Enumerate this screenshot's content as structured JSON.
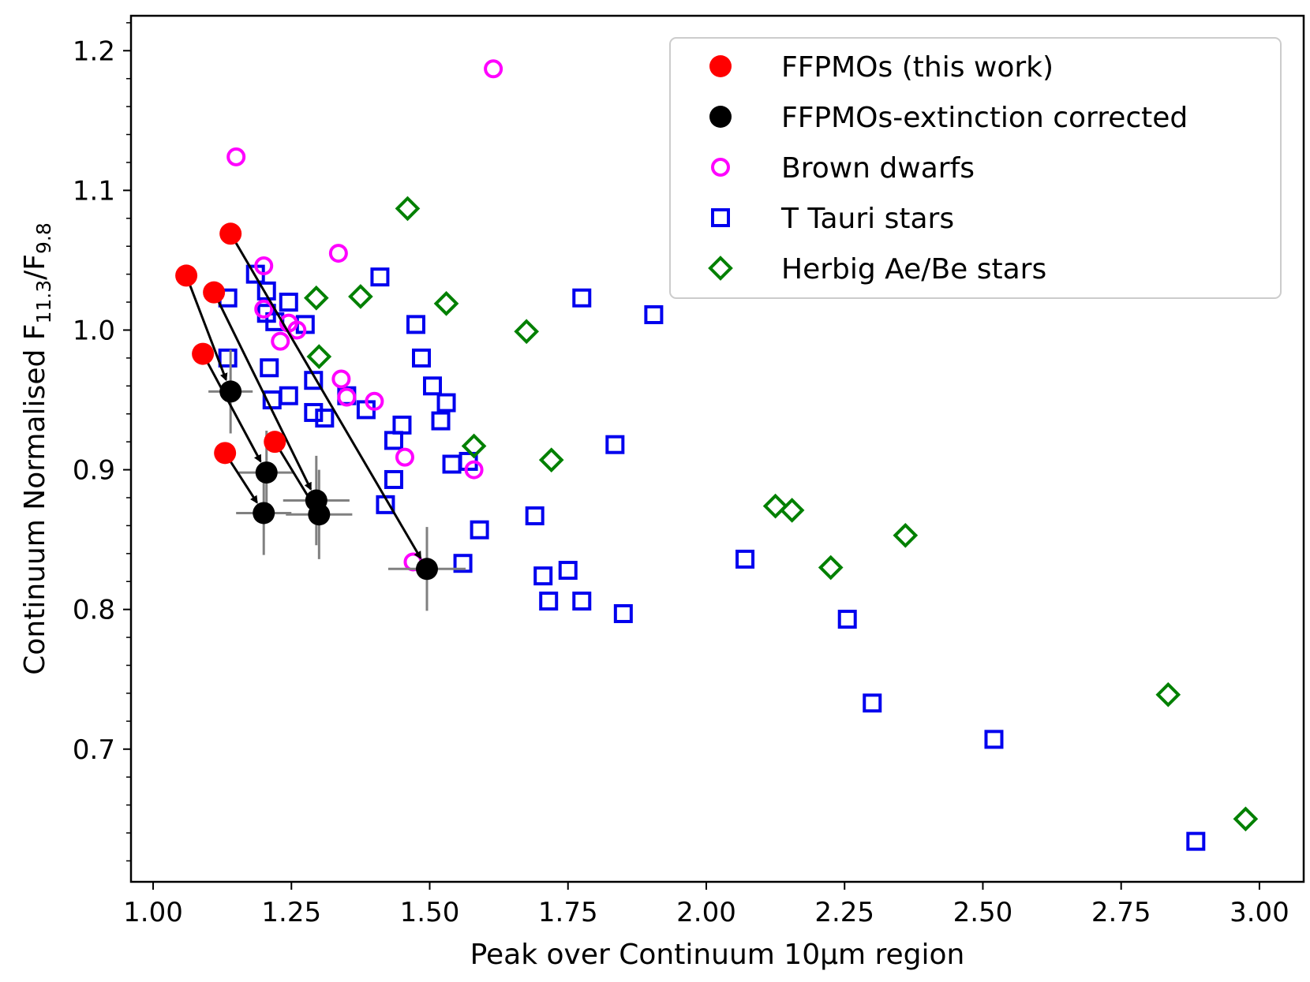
{
  "chart_data": {
    "type": "scatter",
    "xlabel": "Peak over Continuum 10μm region",
    "ylabel_main": "Continuum Normalised F",
    "ylabel_sub1": "11.3",
    "ylabel_sep": "/F",
    "ylabel_sub2": "9.8",
    "xlim": [
      0.96,
      3.08
    ],
    "ylim": [
      0.605,
      1.225
    ],
    "xticks": [
      1.0,
      1.25,
      1.5,
      1.75,
      2.0,
      2.25,
      2.5,
      2.75,
      3.0
    ],
    "xtick_labels": [
      "1.00",
      "1.25",
      "1.50",
      "1.75",
      "2.00",
      "2.25",
      "2.50",
      "2.75",
      "3.00"
    ],
    "yticks": [
      0.7,
      0.8,
      0.9,
      1.0,
      1.1,
      1.2
    ],
    "ytick_labels": [
      "0.7",
      "0.8",
      "0.9",
      "1.0",
      "1.1",
      "1.2"
    ],
    "legend_position": "upper right",
    "series": [
      {
        "name": "FFPMOs (this work)",
        "marker": "filled-circle",
        "color": "#ff0000",
        "points": [
          [
            1.06,
            1.039
          ],
          [
            1.14,
            1.069
          ],
          [
            1.11,
            1.027
          ],
          [
            1.09,
            0.983
          ],
          [
            1.13,
            0.912
          ],
          [
            1.22,
            0.92
          ]
        ]
      },
      {
        "name": "FFPMOs-extinction corrected",
        "marker": "filled-circle",
        "color": "#000000",
        "points": [
          [
            1.14,
            0.956
          ],
          [
            1.205,
            0.898
          ],
          [
            1.2,
            0.869
          ],
          [
            1.295,
            0.878
          ],
          [
            1.3,
            0.868
          ],
          [
            1.495,
            0.829
          ]
        ],
        "errors": [
          {
            "xerr": 0.04,
            "yerr": 0.03
          },
          {
            "xerr": 0.05,
            "yerr": 0.03
          },
          {
            "xerr": 0.05,
            "yerr": 0.03
          },
          {
            "xerr": 0.06,
            "yerr": 0.032
          },
          {
            "xerr": 0.06,
            "yerr": 0.032
          },
          {
            "xerr": 0.07,
            "yerr": 0.03
          }
        ]
      },
      {
        "name": "Brown dwarfs",
        "marker": "open-circle",
        "color": "#ff00ff",
        "points": [
          [
            1.615,
            1.187
          ],
          [
            1.15,
            1.124
          ],
          [
            1.2,
            1.046
          ],
          [
            1.335,
            1.055
          ],
          [
            1.2,
            1.015
          ],
          [
            1.245,
            1.005
          ],
          [
            1.26,
            1.0
          ],
          [
            1.23,
            0.992
          ],
          [
            1.34,
            0.965
          ],
          [
            1.35,
            0.952
          ],
          [
            1.4,
            0.949
          ],
          [
            1.455,
            0.909
          ],
          [
            1.58,
            0.9
          ],
          [
            1.47,
            0.834
          ]
        ]
      },
      {
        "name": "T Tauri stars",
        "marker": "open-square",
        "color": "#0000ee",
        "points": [
          [
            1.135,
            1.023
          ],
          [
            1.135,
            0.98
          ],
          [
            1.185,
            1.04
          ],
          [
            1.205,
            1.028
          ],
          [
            1.245,
            1.02
          ],
          [
            1.205,
            1.012
          ],
          [
            1.22,
            1.006
          ],
          [
            1.275,
            1.004
          ],
          [
            1.21,
            0.973
          ],
          [
            1.29,
            0.964
          ],
          [
            1.215,
            0.95
          ],
          [
            1.245,
            0.953
          ],
          [
            1.29,
            0.941
          ],
          [
            1.31,
            0.937
          ],
          [
            1.35,
            0.953
          ],
          [
            1.385,
            0.943
          ],
          [
            1.41,
            1.038
          ],
          [
            1.475,
            1.004
          ],
          [
            1.485,
            0.98
          ],
          [
            1.505,
            0.96
          ],
          [
            1.53,
            0.948
          ],
          [
            1.52,
            0.935
          ],
          [
            1.435,
            0.921
          ],
          [
            1.45,
            0.932
          ],
          [
            1.435,
            0.893
          ],
          [
            1.42,
            0.875
          ],
          [
            1.54,
            0.904
          ],
          [
            1.57,
            0.906
          ],
          [
            1.59,
            0.857
          ],
          [
            1.56,
            0.833
          ],
          [
            1.69,
            0.867
          ],
          [
            1.705,
            0.824
          ],
          [
            1.715,
            0.806
          ],
          [
            1.75,
            0.828
          ],
          [
            1.775,
            0.806
          ],
          [
            1.775,
            1.023
          ],
          [
            1.835,
            0.918
          ],
          [
            1.85,
            0.797
          ],
          [
            1.905,
            1.011
          ],
          [
            2.07,
            0.836
          ],
          [
            2.255,
            0.793
          ],
          [
            2.3,
            0.733
          ],
          [
            2.52,
            0.707
          ],
          [
            2.885,
            0.634
          ]
        ]
      },
      {
        "name": "Herbig Ae/Be stars",
        "marker": "open-diamond",
        "color": "#008000",
        "points": [
          [
            1.46,
            1.087
          ],
          [
            1.295,
            1.023
          ],
          [
            1.375,
            1.024
          ],
          [
            1.53,
            1.019
          ],
          [
            1.3,
            0.981
          ],
          [
            1.675,
            0.999
          ],
          [
            1.58,
            0.917
          ],
          [
            1.72,
            0.907
          ],
          [
            2.125,
            0.874
          ],
          [
            2.155,
            0.871
          ],
          [
            2.225,
            0.83
          ],
          [
            2.36,
            0.853
          ],
          [
            2.835,
            0.739
          ],
          [
            2.975,
            0.65
          ]
        ]
      }
    ],
    "arrows": [
      {
        "from": [
          1.06,
          1.039
        ],
        "to": [
          1.14,
          0.956
        ]
      },
      {
        "from": [
          1.14,
          1.069
        ],
        "to": [
          1.495,
          0.829
        ]
      },
      {
        "from": [
          1.11,
          1.027
        ],
        "to": [
          1.295,
          0.878
        ]
      },
      {
        "from": [
          1.09,
          0.983
        ],
        "to": [
          1.205,
          0.898
        ]
      },
      {
        "from": [
          1.13,
          0.912
        ],
        "to": [
          1.2,
          0.869
        ]
      },
      {
        "from": [
          1.22,
          0.92
        ],
        "to": [
          1.3,
          0.868
        ]
      }
    ]
  }
}
